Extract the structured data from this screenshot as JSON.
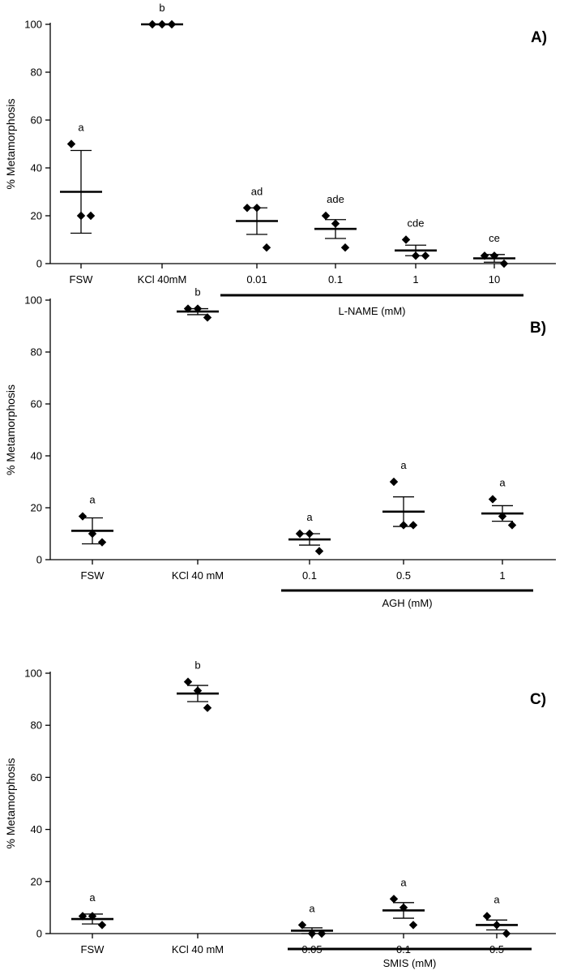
{
  "chart_data": [
    {
      "type": "scatter",
      "panel_label": "A)",
      "ylabel": "% Metamorphosis",
      "ylim": [
        0,
        100
      ],
      "yticks": [
        0,
        20,
        40,
        60,
        80,
        100
      ],
      "categories": [
        "FSW",
        "KCl 40mM",
        "0.01",
        "0.1",
        "1",
        "10"
      ],
      "group_label": "L-NAME (mM)",
      "group_categories": [
        "0.01",
        "0.1",
        "1",
        "10"
      ],
      "groups": [
        {
          "category": "FSW",
          "points": [
            50,
            20,
            20
          ],
          "mean": 30,
          "error_low": 12.7,
          "error_high": 47.3,
          "letter": "a"
        },
        {
          "category": "KCl 40mM",
          "points": [
            100,
            100,
            100
          ],
          "mean": 100,
          "error_low": 100,
          "error_high": 100,
          "letter": "b"
        },
        {
          "category": "0.01",
          "points": [
            23.3,
            23.3,
            6.7
          ],
          "mean": 17.8,
          "error_low": 12.2,
          "error_high": 23.3,
          "letter": "ad"
        },
        {
          "category": "0.1",
          "points": [
            20,
            16.7,
            6.7
          ],
          "mean": 14.5,
          "error_low": 10.5,
          "error_high": 18.4,
          "letter": "ade"
        },
        {
          "category": "1",
          "points": [
            10,
            3.3,
            3.3
          ],
          "mean": 5.5,
          "error_low": 3.3,
          "error_high": 7.7,
          "letter": "cde"
        },
        {
          "category": "10",
          "points": [
            3.3,
            3.3,
            0
          ],
          "mean": 2.2,
          "error_low": 0.6,
          "error_high": 3.8,
          "letter": "ce"
        }
      ]
    },
    {
      "type": "scatter",
      "panel_label": "B)",
      "ylabel": "% Metamorphosis",
      "ylim": [
        0,
        100
      ],
      "yticks": [
        0,
        20,
        40,
        60,
        80,
        100
      ],
      "categories": [
        "FSW",
        "KCl 40 mM",
        "0.1",
        "0.5",
        "1"
      ],
      "group_label": "AGH (mM)",
      "group_categories": [
        "0.1",
        "0.5",
        "1"
      ],
      "groups": [
        {
          "category": "FSW",
          "points": [
            16.7,
            10,
            6.7
          ],
          "mean": 11.1,
          "error_low": 6.1,
          "error_high": 16.1,
          "letter": "a"
        },
        {
          "category": "KCl 40 mM",
          "points": [
            96.7,
            96.7,
            93.3
          ],
          "mean": 95.6,
          "error_low": 94.4,
          "error_high": 96.7,
          "letter": "b"
        },
        {
          "category": "0.1",
          "points": [
            10,
            10,
            3.3
          ],
          "mean": 7.8,
          "error_low": 5.6,
          "error_high": 10,
          "letter": "a"
        },
        {
          "category": "0.5",
          "points": [
            30,
            13.3,
            13.3
          ],
          "mean": 18.5,
          "error_low": 12.8,
          "error_high": 24.2,
          "letter": "a"
        },
        {
          "category": "1",
          "points": [
            23.3,
            16.7,
            13.3
          ],
          "mean": 17.8,
          "error_low": 14.8,
          "error_high": 20.8,
          "letter": "a"
        }
      ]
    },
    {
      "type": "scatter",
      "panel_label": "C)",
      "ylabel": "% Metamorphosis",
      "ylim": [
        0,
        100
      ],
      "yticks": [
        0,
        20,
        40,
        60,
        80,
        100
      ],
      "categories": [
        "FSW",
        "KCl 40 mM",
        "0.05",
        "0.1",
        "0.5"
      ],
      "group_label": "SMIS (mM)",
      "group_categories": [
        "0.05",
        "0.1",
        "0.5"
      ],
      "groups": [
        {
          "category": "FSW",
          "points": [
            6.7,
            6.7,
            3.3
          ],
          "mean": 5.6,
          "error_low": 3.7,
          "error_high": 7.5,
          "letter": "a"
        },
        {
          "category": "KCl 40 mM",
          "points": [
            96.7,
            93.3,
            86.7
          ],
          "mean": 92.2,
          "error_low": 89.1,
          "error_high": 95.3,
          "letter": "b"
        },
        {
          "category": "0.05",
          "points": [
            3.3,
            0,
            0
          ],
          "mean": 1.1,
          "error_low": 0,
          "error_high": 2.2,
          "letter": "a"
        },
        {
          "category": "0.1",
          "points": [
            13.3,
            10,
            3.3
          ],
          "mean": 8.9,
          "error_low": 5.9,
          "error_high": 11.9,
          "letter": "a"
        },
        {
          "category": "0.5",
          "points": [
            6.7,
            3.3,
            0
          ],
          "mean": 3.3,
          "error_low": 1.4,
          "error_high": 5.2,
          "letter": "a"
        }
      ]
    }
  ]
}
